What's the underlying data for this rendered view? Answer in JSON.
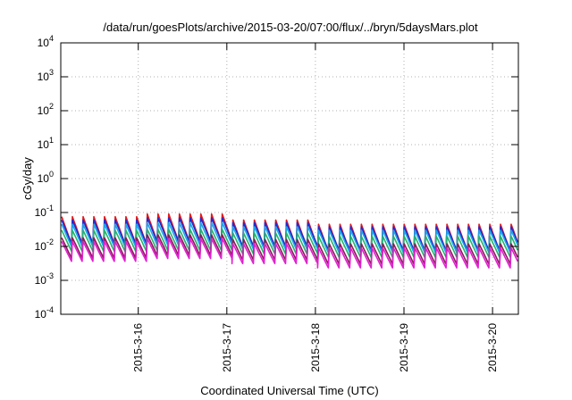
{
  "chart_data": {
    "type": "line",
    "title": "/data/run/goesPlots/archive/2015-03-20/07:00/flux/../bryn/5daysMars.plot",
    "xlabel": "Coordinated Universal Time (UTC)",
    "ylabel": "cGy/day",
    "yscale": "log",
    "ylim": [
      0.0001,
      10000
    ],
    "xlim": [
      "2015-03-15 03:00",
      "2015-03-20 07:00"
    ],
    "grid": true,
    "x_ticks": [
      "2015-3-16",
      "2015-3-17",
      "2015-3-18",
      "2015-3-19",
      "2015-3-20"
    ],
    "y_ticks": [
      {
        "base": "10",
        "exp": "-4"
      },
      {
        "base": "10",
        "exp": "-3"
      },
      {
        "base": "10",
        "exp": "-2"
      },
      {
        "base": "10",
        "exp": "-1"
      },
      {
        "base": "10",
        "exp": "0"
      },
      {
        "base": "10",
        "exp": "1"
      },
      {
        "base": "10",
        "exp": "2"
      },
      {
        "base": "10",
        "exp": "3"
      },
      {
        "base": "10",
        "exp": "4"
      }
    ],
    "sawtooth_period_hours": 2.9,
    "series": [
      {
        "color": "#e41a1c",
        "day_peaks": [
          0.075,
          0.09,
          0.06,
          0.045,
          0.045,
          0.045
        ],
        "trough_ratio": 0.16
      },
      {
        "color": "#1f2ad4",
        "day_peaks": [
          0.06,
          0.07,
          0.05,
          0.038,
          0.038,
          0.038
        ],
        "trough_ratio": 0.2
      },
      {
        "color": "#1ca6e8",
        "day_peaks": [
          0.045,
          0.05,
          0.038,
          0.03,
          0.03,
          0.03
        ],
        "trough_ratio": 0.22
      },
      {
        "color": "#26b36b",
        "day_peaks": [
          0.03,
          0.032,
          0.025,
          0.02,
          0.02,
          0.02
        ],
        "trough_ratio": 0.24
      },
      {
        "color": "#8b1a5a",
        "day_peaks": [
          0.018,
          0.022,
          0.016,
          0.012,
          0.012,
          0.012
        ],
        "trough_ratio": 0.25
      },
      {
        "color": "#e020d0",
        "day_peaks": [
          0.014,
          0.017,
          0.012,
          0.009,
          0.009,
          0.009
        ],
        "trough_ratio": 0.26
      }
    ]
  }
}
